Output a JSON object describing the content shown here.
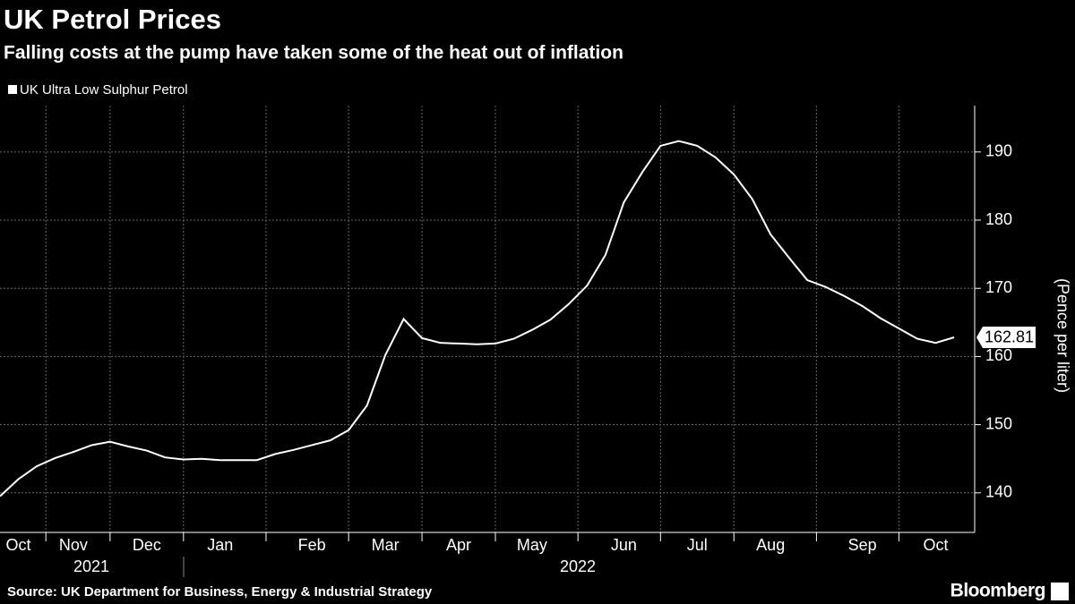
{
  "chart_data": {
    "type": "line",
    "title": "UK Petrol Prices",
    "subtitle": "Falling costs at the pump have taken some of the heat out of inflation",
    "y_label": "(Pence per liter)",
    "source": "Source: UK Department for Business, Energy & Industrial Strategy",
    "brand": "Bloomberg",
    "years": [
      "2021",
      "2022"
    ],
    "categories": [
      null,
      "Oct",
      null,
      null,
      "Nov",
      null,
      null,
      null,
      "Dec",
      null,
      null,
      null,
      "Jan",
      null,
      null,
      null,
      null,
      "Feb",
      null,
      null,
      null,
      "Mar",
      null,
      null,
      null,
      "Apr",
      null,
      null,
      null,
      "May",
      null,
      null,
      null,
      null,
      "Jun",
      null,
      null,
      null,
      "Jul",
      null,
      null,
      null,
      "Aug",
      null,
      null,
      null,
      null,
      "Sep",
      null,
      null,
      null,
      "Oct",
      null
    ],
    "series": [
      {
        "name": "UK Ultra Low Sulphur Petrol",
        "color": "#ffffff",
        "values": [
          139.5,
          142,
          143.9,
          145.1,
          146,
          147,
          147.5,
          146.8,
          146.2,
          145.2,
          144.9,
          145,
          144.8,
          144.8,
          144.8,
          145.7,
          146.3,
          147,
          147.7,
          149.2,
          152.8,
          160.2,
          165.5,
          162.7,
          162,
          161.9,
          161.8,
          161.9,
          162.6,
          163.9,
          165.4,
          167.7,
          170.4,
          174.9,
          182.6,
          187,
          190.9,
          191.6,
          190.9,
          189.2,
          186.7,
          183.1,
          177.9,
          174.5,
          171.2,
          170.2,
          168.9,
          167.4,
          165.6,
          164.1,
          162.6,
          162,
          162.81
        ]
      }
    ],
    "ylim": [
      134.2,
      196.8
    ],
    "yticks": [
      140,
      150,
      160,
      170,
      180,
      190
    ],
    "grid": true
  }
}
